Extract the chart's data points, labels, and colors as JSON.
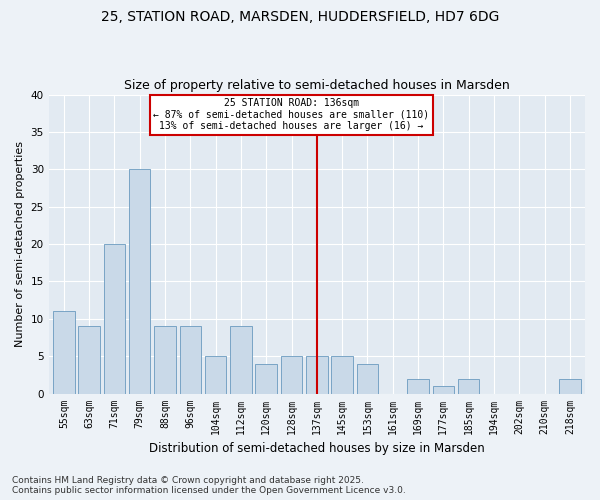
{
  "title1": "25, STATION ROAD, MARSDEN, HUDDERSFIELD, HD7 6DG",
  "title2": "Size of property relative to semi-detached houses in Marsden",
  "xlabel": "Distribution of semi-detached houses by size in Marsden",
  "ylabel": "Number of semi-detached properties",
  "categories": [
    "55sqm",
    "63sqm",
    "71sqm",
    "79sqm",
    "88sqm",
    "96sqm",
    "104sqm",
    "112sqm",
    "120sqm",
    "128sqm",
    "137sqm",
    "145sqm",
    "153sqm",
    "161sqm",
    "169sqm",
    "177sqm",
    "185sqm",
    "194sqm",
    "202sqm",
    "210sqm",
    "218sqm"
  ],
  "values": [
    11,
    9,
    20,
    30,
    9,
    9,
    5,
    9,
    4,
    5,
    5,
    5,
    4,
    0,
    2,
    1,
    2,
    0,
    0,
    0,
    2
  ],
  "bar_color": "#c9d9e8",
  "bar_edge_color": "#6a9abf",
  "highlight_index": 10,
  "highlight_line_color": "#cc0000",
  "annotation_text": "25 STATION ROAD: 136sqm\n← 87% of semi-detached houses are smaller (110)\n13% of semi-detached houses are larger (16) →",
  "annotation_box_edge": "#cc0000",
  "ylim": [
    0,
    40
  ],
  "yticks": [
    0,
    5,
    10,
    15,
    20,
    25,
    30,
    35,
    40
  ],
  "footnote": "Contains HM Land Registry data © Crown copyright and database right 2025.\nContains public sector information licensed under the Open Government Licence v3.0.",
  "bg_color": "#edf2f7",
  "plot_bg_color": "#e2eaf2",
  "grid_color": "#ffffff",
  "title1_fontsize": 10,
  "title2_fontsize": 9,
  "footnote_fontsize": 6.5
}
